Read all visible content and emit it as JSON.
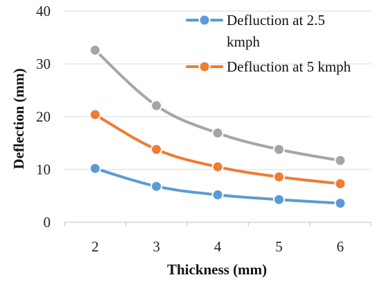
{
  "chart_data": {
    "type": "line",
    "x": [
      2,
      3,
      4,
      5,
      6
    ],
    "categories": [
      "2",
      "3",
      "4",
      "5",
      "6"
    ],
    "xlabel": "Thickness (mm)",
    "ylabel": "Deflection (mm)",
    "ylim": [
      0,
      40
    ],
    "yticks": [
      "0",
      "10",
      "20",
      "30",
      "40"
    ],
    "grid": "horizontal",
    "legend_position": "top-right",
    "series": [
      {
        "name": "Defluction at 2.5 kmph",
        "legend_line1": "Defluction at 2.5",
        "legend_line2": "kmph",
        "color": "#5b9bd5",
        "values": [
          10.2,
          6.8,
          5.2,
          4.3,
          3.6
        ]
      },
      {
        "name": "Defluction at 5 kmph",
        "color": "#ed7d31",
        "values": [
          20.4,
          13.8,
          10.5,
          8.6,
          7.3
        ]
      },
      {
        "color": "#a5a5a5",
        "values": [
          32.6,
          22.1,
          16.9,
          13.8,
          11.7
        ]
      }
    ]
  }
}
